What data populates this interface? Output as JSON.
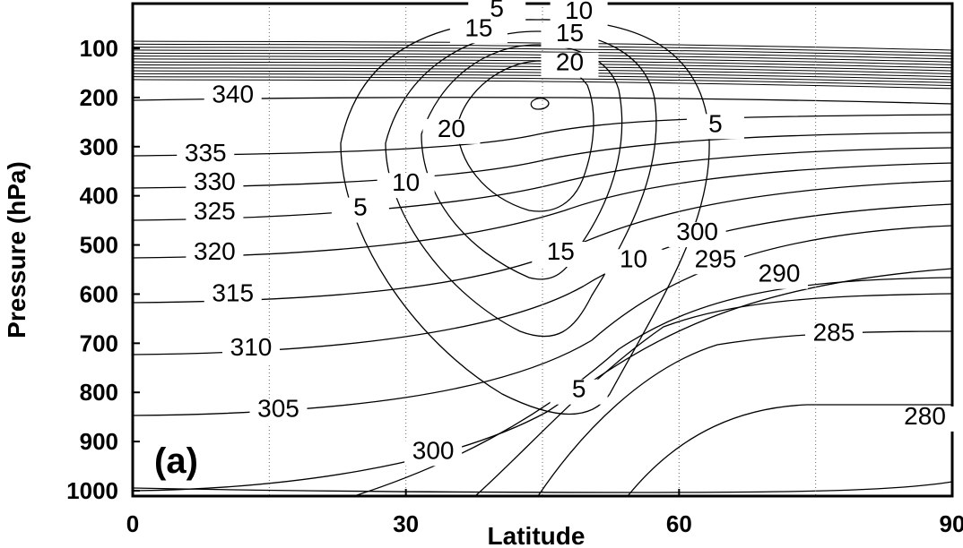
{
  "chart_data": {
    "type": "contour",
    "panel_label": "(a)",
    "xlabel": "Latitude",
    "ylabel": "Pressure (hPa)",
    "x_ticks": [
      "0",
      "30",
      "60",
      "90"
    ],
    "y_ticks": [
      "100",
      "200",
      "300",
      "400",
      "500",
      "600",
      "700",
      "800",
      "900",
      "1000"
    ],
    "xlim": [
      0,
      90
    ],
    "ylim": [
      1000,
      100
    ],
    "grid_x": [
      15,
      30,
      45,
      60,
      75
    ],
    "theta_contours": [
      {
        "label": "340",
        "lat": 11,
        "p": 210
      },
      {
        "label": "335",
        "lat": 8,
        "p": 330
      },
      {
        "label": "330",
        "lat": 9,
        "p": 388
      },
      {
        "label": "325",
        "lat": 9,
        "p": 448
      },
      {
        "label": "320",
        "lat": 9,
        "p": 530
      },
      {
        "label": "315",
        "lat": 11,
        "p": 615
      },
      {
        "label": "310",
        "lat": 13,
        "p": 725
      },
      {
        "label": "305",
        "lat": 16,
        "p": 850
      },
      {
        "label": "300",
        "lat": 33,
        "p": 935
      },
      {
        "label": "300",
        "lat": 62,
        "p": 490
      },
      {
        "label": "295",
        "lat": 64,
        "p": 545
      },
      {
        "label": "290",
        "lat": 71,
        "p": 575
      },
      {
        "label": "285",
        "lat": 77,
        "p": 695
      },
      {
        "label": "280",
        "lat": 87,
        "p": 865
      }
    ],
    "wind_contours": [
      {
        "label": "5",
        "lat": 40,
        "p": 35
      },
      {
        "label": "10",
        "lat": 49,
        "p": 40
      },
      {
        "label": "15",
        "lat": 38,
        "p": 75
      },
      {
        "label": "15",
        "lat": 48,
        "p": 85
      },
      {
        "label": "20",
        "lat": 48,
        "p": 145
      },
      {
        "label": "20",
        "lat": 35,
        "p": 280
      },
      {
        "label": "10",
        "lat": 30,
        "p": 390
      },
      {
        "label": "5",
        "lat": 25,
        "p": 440
      },
      {
        "label": "15",
        "lat": 47,
        "p": 530
      },
      {
        "label": "10",
        "lat": 55,
        "p": 545
      },
      {
        "label": "5",
        "lat": 64,
        "p": 270
      },
      {
        "label": "5",
        "lat": 49,
        "p": 810
      }
    ]
  }
}
